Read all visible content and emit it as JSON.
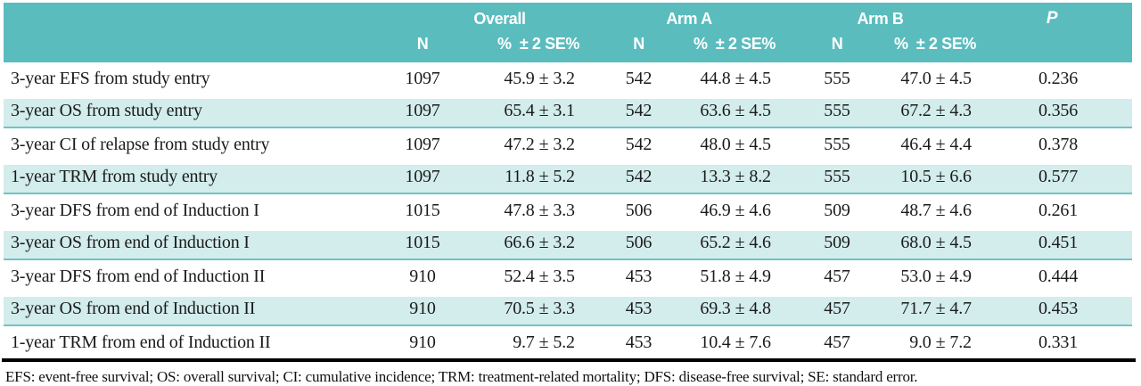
{
  "colors": {
    "header_teal": "#5bbcbe",
    "stripe_fill": "#d3ecec",
    "stripe_border": "#6fc3c6",
    "rule_black": "#000000",
    "header_text": "#ffffff",
    "body_text": "#1b1b1b"
  },
  "table": {
    "groups": [
      {
        "label": "Overall"
      },
      {
        "label": "Arm A"
      },
      {
        "label": "Arm B"
      },
      {
        "label": "P"
      }
    ],
    "sub_n": "N",
    "sub_pct": "%  ± 2 SE%",
    "plus_minus": "±",
    "rows": [
      {
        "label": "3-year EFS from study entry",
        "overall": {
          "n": "1097",
          "v": "45.9",
          "e": "3.2"
        },
        "arm_a": {
          "n": "542",
          "v": "44.8",
          "e": "4.5"
        },
        "arm_b": {
          "n": "555",
          "v": "47.0",
          "e": "4.5"
        },
        "p": "0.236"
      },
      {
        "label": "3-year OS from study entry",
        "overall": {
          "n": "1097",
          "v": "65.4",
          "e": "3.1"
        },
        "arm_a": {
          "n": "542",
          "v": "63.6",
          "e": "4.5"
        },
        "arm_b": {
          "n": "555",
          "v": "67.2",
          "e": "4.3"
        },
        "p": "0.356"
      },
      {
        "label": "3-year CI of relapse from study entry",
        "overall": {
          "n": "1097",
          "v": "47.2",
          "e": "3.2"
        },
        "arm_a": {
          "n": "542",
          "v": "48.0",
          "e": "4.5"
        },
        "arm_b": {
          "n": "555",
          "v": "46.4",
          "e": "4.4"
        },
        "p": "0.378"
      },
      {
        "label": "1-year TRM from study entry",
        "overall": {
          "n": "1097",
          "v": "11.8",
          "e": "5.2"
        },
        "arm_a": {
          "n": "542",
          "v": "13.3",
          "e": "8.2"
        },
        "arm_b": {
          "n": "555",
          "v": "10.5",
          "e": "6.6"
        },
        "p": "0.577"
      },
      {
        "label": "3-year DFS from end of Induction I",
        "overall": {
          "n": "1015",
          "v": "47.8",
          "e": "3.3"
        },
        "arm_a": {
          "n": "506",
          "v": "46.9",
          "e": "4.6"
        },
        "arm_b": {
          "n": "509",
          "v": "48.7",
          "e": "4.6"
        },
        "p": "0.261"
      },
      {
        "label": "3-year OS from end of Induction I",
        "overall": {
          "n": "1015",
          "v": "66.6",
          "e": "3.2"
        },
        "arm_a": {
          "n": "506",
          "v": "65.2",
          "e": "4.6"
        },
        "arm_b": {
          "n": "509",
          "v": "68.0",
          "e": "4.5"
        },
        "p": "0.451"
      },
      {
        "label": "3-year DFS from end of Induction II",
        "overall": {
          "n": "910",
          "v": "52.4",
          "e": "3.5"
        },
        "arm_a": {
          "n": "453",
          "v": "51.8",
          "e": "4.9"
        },
        "arm_b": {
          "n": "457",
          "v": "53.0",
          "e": "4.9"
        },
        "p": "0.444"
      },
      {
        "label": "3-year OS from end of Induction II",
        "overall": {
          "n": "910",
          "v": "70.5",
          "e": "3.3"
        },
        "arm_a": {
          "n": "453",
          "v": "69.3",
          "e": "4.8"
        },
        "arm_b": {
          "n": "457",
          "v": "71.7",
          "e": "4.7"
        },
        "p": "0.453"
      },
      {
        "label": "1-year TRM from end of Induction II",
        "overall": {
          "n": "910",
          "v": "9.7",
          "e": "5.2"
        },
        "arm_a": {
          "n": "453",
          "v": "10.4",
          "e": "7.6"
        },
        "arm_b": {
          "n": "457",
          "v": "9.0",
          "e": "7.2"
        },
        "p": "0.331"
      }
    ]
  },
  "footnote": "EFS: event-free survival; OS: overall survival; CI: cumulative incidence; TRM: treatment-related mortality; DFS: disease-free survival; SE: standard error."
}
